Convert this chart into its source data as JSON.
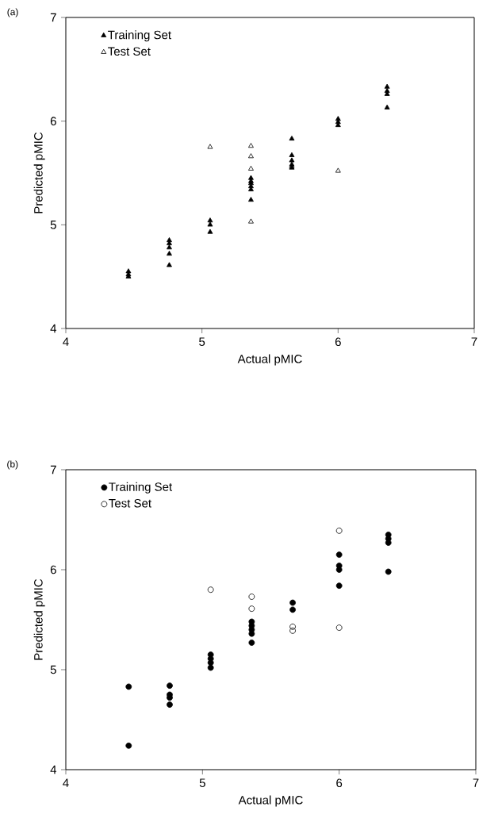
{
  "chart_data": [
    {
      "type": "scatter",
      "title": "(a)",
      "xlabel": "Actual pMIC",
      "ylabel": "Predicted pMIC",
      "xlim": [
        4,
        7
      ],
      "ylim": [
        4,
        7
      ],
      "xticks": [
        4,
        5,
        6,
        7
      ],
      "yticks": [
        4,
        5,
        6,
        7
      ],
      "legend": "top left",
      "marker": "triangle",
      "series": [
        {
          "name": "Training Set",
          "color": "#000000",
          "x": [
            4.46,
            4.46,
            4.46,
            4.76,
            4.76,
            4.76,
            4.76,
            4.76,
            5.06,
            5.06,
            5.06,
            5.36,
            5.36,
            5.36,
            5.36,
            5.36,
            5.36,
            5.66,
            5.66,
            5.66,
            5.66,
            5.66,
            6.0,
            6.0,
            6.0,
            6.36,
            6.36,
            6.36,
            6.36
          ],
          "values": [
            4.55,
            4.52,
            4.5,
            4.85,
            4.82,
            4.78,
            4.72,
            4.61,
            5.04,
            5.0,
            4.93,
            5.45,
            5.42,
            5.4,
            5.37,
            5.34,
            5.24,
            5.83,
            5.67,
            5.62,
            5.58,
            5.55,
            6.02,
            5.99,
            5.96,
            6.33,
            6.29,
            6.26,
            6.13
          ]
        },
        {
          "name": "Test Set",
          "color": "#000000",
          "x": [
            5.06,
            5.36,
            5.36,
            5.36,
            5.36,
            5.66,
            6.0
          ],
          "values": [
            5.75,
            5.76,
            5.66,
            5.54,
            5.03,
            5.56,
            5.52
          ]
        }
      ]
    },
    {
      "type": "scatter",
      "title": "(b)",
      "xlabel": "Actual pMIC",
      "ylabel": "Predicted pMIC",
      "xlim": [
        4,
        7
      ],
      "ylim": [
        4,
        7
      ],
      "xticks": [
        4,
        5,
        6,
        7
      ],
      "yticks": [
        4,
        5,
        6,
        7
      ],
      "legend": "top left",
      "marker": "circle",
      "series": [
        {
          "name": "Training Set",
          "color": "#000000",
          "x": [
            4.46,
            4.46,
            4.76,
            4.76,
            4.76,
            4.76,
            5.06,
            5.06,
            5.06,
            5.06,
            5.36,
            5.36,
            5.36,
            5.36,
            5.36,
            5.66,
            5.66,
            6.0,
            6.0,
            6.0,
            6.0,
            6.36,
            6.36,
            6.36,
            6.36
          ],
          "values": [
            4.83,
            4.24,
            4.84,
            4.75,
            4.72,
            4.65,
            5.15,
            5.11,
            5.07,
            5.02,
            5.48,
            5.44,
            5.4,
            5.36,
            5.27,
            5.67,
            5.6,
            6.15,
            6.04,
            6.0,
            5.84,
            6.35,
            6.31,
            6.27,
            5.98
          ]
        },
        {
          "name": "Test Set",
          "color": "#000000",
          "x": [
            5.06,
            5.36,
            5.36,
            5.66,
            5.66,
            6.0,
            6.0
          ],
          "values": [
            5.8,
            5.73,
            5.61,
            5.43,
            5.39,
            6.39,
            5.42
          ]
        }
      ]
    }
  ]
}
